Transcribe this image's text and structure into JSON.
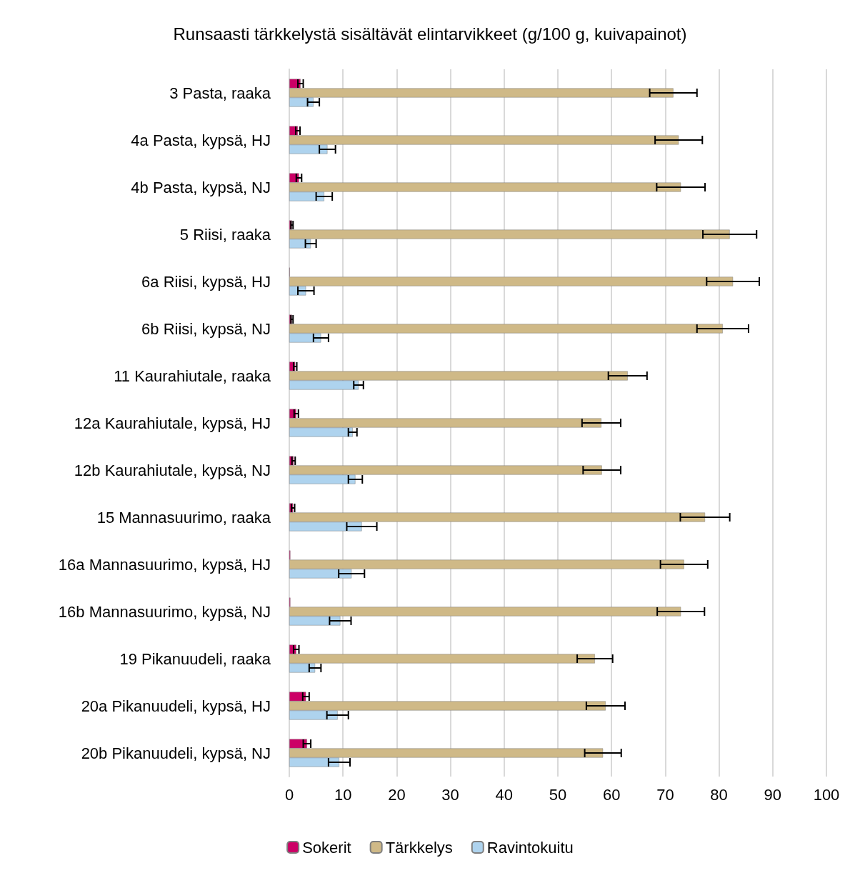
{
  "chart_data": {
    "type": "bar",
    "orientation": "horizontal",
    "title": "Runsaasti tärkkelystä sisältävät elintarvikkeet (g/100 g, kuivapainot)",
    "categories": [
      "3 Pasta, raaka",
      "4a Pasta, kypsä, HJ",
      "4b Pasta, kypsä, NJ",
      "5 Riisi, raaka",
      "6a Riisi, kypsä, HJ",
      "6b Riisi, kypsä, NJ",
      "11 Kaurahiutale, raaka",
      "12a Kaurahiutale, kypsä, HJ",
      "12b Kaurahiutale, kypsä, NJ",
      "15 Mannasuurimo, raaka",
      "16a Mannasuurimo, kypsä, HJ",
      "16b Mannasuurimo, kypsä, NJ",
      "19 Pikanuudeli, raaka",
      "20a Pikanuudeli, kypsä, HJ",
      "20b Pikanuudeli, kypsä, NJ"
    ],
    "series": [
      {
        "name": "Sokerit",
        "color": "#cc0066",
        "values": [
          2.1,
          1.6,
          1.8,
          0.5,
          0.1,
          0.5,
          1.1,
          1.3,
          0.8,
          0.7,
          0.2,
          0.2,
          1.3,
          3.1,
          3.3
        ],
        "errors": [
          0.5,
          0.4,
          0.5,
          0.2,
          null,
          0.2,
          0.3,
          0.4,
          0.3,
          0.3,
          null,
          null,
          0.5,
          0.6,
          0.7
        ]
      },
      {
        "name": "Tärkkelys",
        "color": "#cfb987",
        "values": [
          71.5,
          72.5,
          72.9,
          82.0,
          82.6,
          80.7,
          63.0,
          58.1,
          58.2,
          77.4,
          73.5,
          72.9,
          56.9,
          58.9,
          58.4
        ],
        "errors": [
          4.4,
          4.4,
          4.5,
          5.0,
          4.9,
          4.8,
          3.6,
          3.6,
          3.5,
          4.6,
          4.4,
          4.4,
          3.3,
          3.6,
          3.4
        ]
      },
      {
        "name": "Ravintokuitu",
        "color": "#aed3ee",
        "values": [
          4.5,
          7.1,
          6.5,
          4.0,
          3.1,
          5.9,
          12.9,
          11.8,
          12.3,
          13.5,
          11.6,
          9.5,
          4.8,
          9.0,
          9.3
        ],
        "errors": [
          1.1,
          1.5,
          1.5,
          1.0,
          1.5,
          1.4,
          0.9,
          0.8,
          1.3,
          2.8,
          2.4,
          2.0,
          1.1,
          2.0,
          2.0
        ]
      }
    ],
    "xlim": [
      0,
      100
    ],
    "xticks": [
      0,
      10,
      20,
      30,
      40,
      50,
      60,
      70,
      80,
      90,
      100
    ],
    "grid": "x",
    "legend": "bottom"
  }
}
